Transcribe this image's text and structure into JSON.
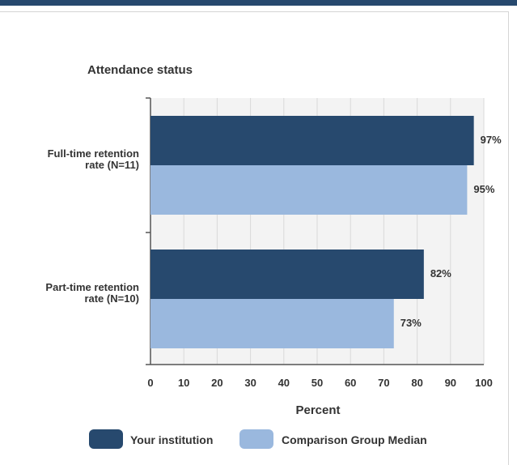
{
  "chart_data": {
    "type": "bar",
    "orientation": "horizontal",
    "title": "Attendance status",
    "xlabel": "Percent",
    "xlim": [
      0,
      100
    ],
    "xticks": [
      "0",
      "10",
      "20",
      "30",
      "40",
      "50",
      "60",
      "70",
      "80",
      "90",
      "100"
    ],
    "categories": [
      [
        "Full-time retention",
        "rate (N=11)"
      ],
      [
        "Part-time retention",
        "rate (N=10)"
      ]
    ],
    "series": [
      {
        "name": "Your institution",
        "color": "#27496e",
        "values": [
          97,
          82
        ],
        "labels": [
          "97%",
          "82%"
        ]
      },
      {
        "name": "Comparison Group Median",
        "color": "#9ab8de",
        "values": [
          95,
          73
        ],
        "labels": [
          "95%",
          "73%"
        ]
      }
    ],
    "grid": true,
    "legend_position": "bottom"
  }
}
